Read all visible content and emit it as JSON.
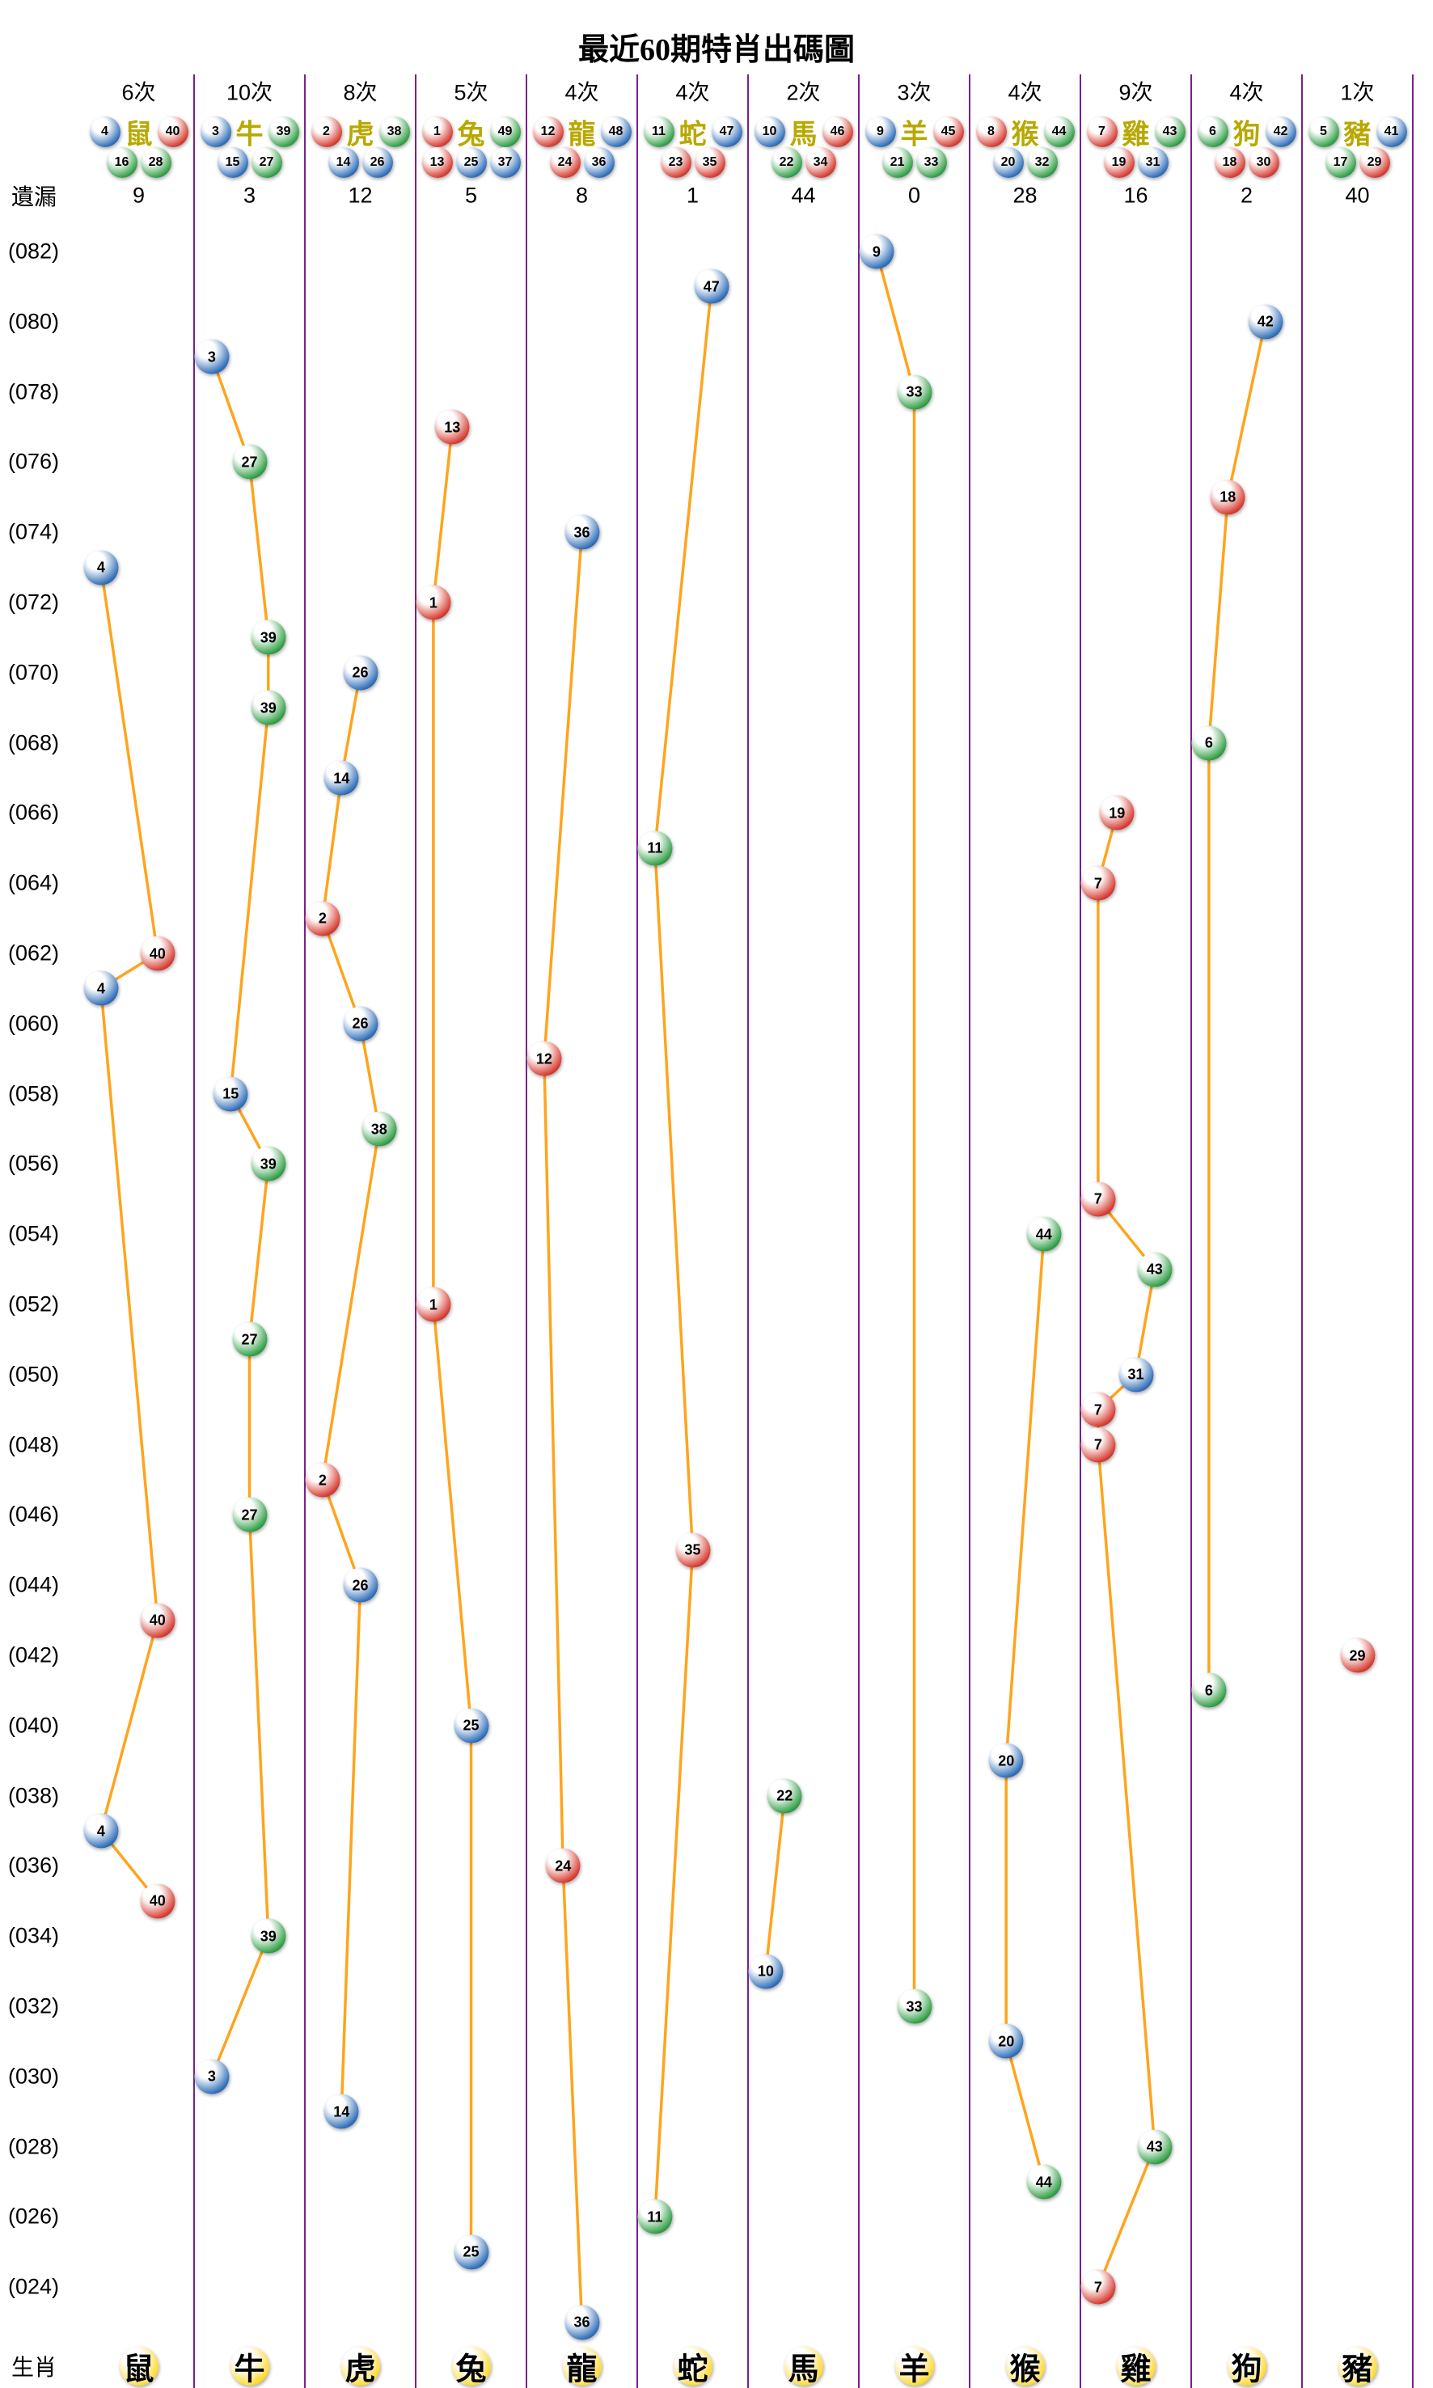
{
  "title": "最近60期特肖出碼圖",
  "left_labels": {
    "missing": "遺漏",
    "zodiac": "生肖"
  },
  "colors": {
    "red": "#d63a2f",
    "red_dark": "#7e1611",
    "blue": "#2e6db8",
    "blue_dark": "#14386b",
    "green": "#2f9e44",
    "green_dark": "#14551f",
    "line": "#ffa41d",
    "separator": "#7a1f8e",
    "header_zodiac_text": "#b8a800",
    "bottom_ball": "#ffd92b",
    "bottom_ball_dark": "#9a7b00",
    "text": "#000000"
  },
  "ball_color_groups": {
    "red": [
      1,
      2,
      7,
      8,
      12,
      13,
      18,
      19,
      23,
      24,
      29,
      30,
      34,
      35,
      40,
      45,
      46
    ],
    "blue": [
      3,
      4,
      9,
      10,
      14,
      15,
      20,
      25,
      26,
      31,
      36,
      37,
      41,
      42,
      47,
      48
    ],
    "green": [
      5,
      6,
      11,
      16,
      17,
      21,
      22,
      27,
      28,
      32,
      33,
      38,
      39,
      43,
      44,
      49
    ]
  },
  "chart_data": {
    "type": "line",
    "title": "最近60期特肖出碼圖",
    "y_range": [
      23,
      82
    ],
    "y_axis_labels": [
      "(082)",
      "(080)",
      "(078)",
      "(076)",
      "(074)",
      "(072)",
      "(070)",
      "(068)",
      "(066)",
      "(064)",
      "(062)",
      "(060)",
      "(058)",
      "(056)",
      "(054)",
      "(052)",
      "(050)",
      "(048)",
      "(046)",
      "(044)",
      "(042)",
      "(040)",
      "(038)",
      "(036)",
      "(034)",
      "(032)",
      "(030)",
      "(028)",
      "(026)",
      "(024)"
    ],
    "columns": [
      {
        "zodiac": "鼠",
        "count_label": "6次",
        "missing": "9",
        "numbers": [
          4,
          16,
          28,
          40
        ],
        "header_row1": [
          4,
          40
        ],
        "header_row2": [
          16,
          28
        ],
        "points": [
          {
            "p": 73,
            "n": 4
          },
          {
            "p": 62,
            "n": 40
          },
          {
            "p": 61,
            "n": 4
          },
          {
            "p": 43,
            "n": 40
          },
          {
            "p": 37,
            "n": 4
          },
          {
            "p": 35,
            "n": 40
          }
        ]
      },
      {
        "zodiac": "牛",
        "count_label": "10次",
        "missing": "3",
        "numbers": [
          3,
          15,
          27,
          39
        ],
        "header_row1": [
          3,
          39
        ],
        "header_row2": [
          15,
          27
        ],
        "points": [
          {
            "p": 79,
            "n": 3
          },
          {
            "p": 76,
            "n": 27
          },
          {
            "p": 71,
            "n": 39
          },
          {
            "p": 69,
            "n": 39
          },
          {
            "p": 58,
            "n": 15
          },
          {
            "p": 56,
            "n": 39
          },
          {
            "p": 51,
            "n": 27
          },
          {
            "p": 46,
            "n": 27
          },
          {
            "p": 34,
            "n": 39
          },
          {
            "p": 30,
            "n": 3
          }
        ]
      },
      {
        "zodiac": "虎",
        "count_label": "8次",
        "missing": "12",
        "numbers": [
          2,
          14,
          26,
          38
        ],
        "header_row1": [
          2,
          38
        ],
        "header_row2": [
          14,
          26
        ],
        "points": [
          {
            "p": 70,
            "n": 26
          },
          {
            "p": 67,
            "n": 14
          },
          {
            "p": 63,
            "n": 2
          },
          {
            "p": 60,
            "n": 26
          },
          {
            "p": 57,
            "n": 38
          },
          {
            "p": 47,
            "n": 2
          },
          {
            "p": 44,
            "n": 26
          },
          {
            "p": 29,
            "n": 14
          }
        ]
      },
      {
        "zodiac": "兔",
        "count_label": "5次",
        "missing": "5",
        "numbers": [
          1,
          13,
          25,
          37,
          49
        ],
        "header_row1": [
          1,
          49
        ],
        "header_row2": [
          13,
          25,
          37
        ],
        "points": [
          {
            "p": 77,
            "n": 13
          },
          {
            "p": 72,
            "n": 1
          },
          {
            "p": 52,
            "n": 1
          },
          {
            "p": 40,
            "n": 25
          },
          {
            "p": 25,
            "n": 25
          }
        ]
      },
      {
        "zodiac": "龍",
        "count_label": "4次",
        "missing": "8",
        "numbers": [
          12,
          24,
          36,
          48
        ],
        "header_row1": [
          12,
          48
        ],
        "header_row2": [
          24,
          36
        ],
        "points": [
          {
            "p": 74,
            "n": 36
          },
          {
            "p": 59,
            "n": 12
          },
          {
            "p": 36,
            "n": 24
          },
          {
            "p": 23,
            "n": 36
          }
        ]
      },
      {
        "zodiac": "蛇",
        "count_label": "4次",
        "missing": "1",
        "numbers": [
          11,
          23,
          35,
          47
        ],
        "header_row1": [
          11,
          47
        ],
        "header_row2": [
          23,
          35
        ],
        "points": [
          {
            "p": 81,
            "n": 47
          },
          {
            "p": 65,
            "n": 11
          },
          {
            "p": 45,
            "n": 35
          },
          {
            "p": 26,
            "n": 11
          }
        ]
      },
      {
        "zodiac": "馬",
        "count_label": "2次",
        "missing": "44",
        "numbers": [
          10,
          22,
          34,
          46
        ],
        "header_row1": [
          10,
          46
        ],
        "header_row2": [
          22,
          34
        ],
        "points": [
          {
            "p": 38,
            "n": 22
          },
          {
            "p": 33,
            "n": 10
          }
        ]
      },
      {
        "zodiac": "羊",
        "count_label": "3次",
        "missing": "0",
        "numbers": [
          9,
          21,
          33,
          45
        ],
        "header_row1": [
          9,
          45
        ],
        "header_row2": [
          21,
          33
        ],
        "points": [
          {
            "p": 82,
            "n": 9
          },
          {
            "p": 78,
            "n": 33
          },
          {
            "p": 32,
            "n": 33
          }
        ]
      },
      {
        "zodiac": "猴",
        "count_label": "4次",
        "missing": "28",
        "numbers": [
          8,
          20,
          32,
          44
        ],
        "header_row1": [
          8,
          44
        ],
        "header_row2": [
          20,
          32
        ],
        "points": [
          {
            "p": 54,
            "n": 44
          },
          {
            "p": 39,
            "n": 20
          },
          {
            "p": 31,
            "n": 20
          },
          {
            "p": 27,
            "n": 44
          }
        ]
      },
      {
        "zodiac": "雞",
        "count_label": "9次",
        "missing": "16",
        "numbers": [
          7,
          19,
          31,
          43
        ],
        "header_row1": [
          7,
          43
        ],
        "header_row2": [
          19,
          31
        ],
        "points": [
          {
            "p": 66,
            "n": 19
          },
          {
            "p": 64,
            "n": 7
          },
          {
            "p": 55,
            "n": 7
          },
          {
            "p": 53,
            "n": 43
          },
          {
            "p": 50,
            "n": 31
          },
          {
            "p": 49,
            "n": 7
          },
          {
            "p": 48,
            "n": 7
          },
          {
            "p": 28,
            "n": 43
          },
          {
            "p": 24,
            "n": 7
          }
        ]
      },
      {
        "zodiac": "狗",
        "count_label": "4次",
        "missing": "2",
        "numbers": [
          6,
          18,
          30,
          42
        ],
        "header_row1": [
          6,
          42
        ],
        "header_row2": [
          18,
          30
        ],
        "points": [
          {
            "p": 80,
            "n": 42
          },
          {
            "p": 75,
            "n": 18
          },
          {
            "p": 68,
            "n": 6
          },
          {
            "p": 41,
            "n": 6
          }
        ]
      },
      {
        "zodiac": "豬",
        "count_label": "1次",
        "missing": "40",
        "numbers": [
          5,
          17,
          29,
          41
        ],
        "header_row1": [
          5,
          41
        ],
        "header_row2": [
          17,
          29
        ],
        "points": [
          {
            "p": 42,
            "n": 29
          }
        ]
      }
    ]
  }
}
